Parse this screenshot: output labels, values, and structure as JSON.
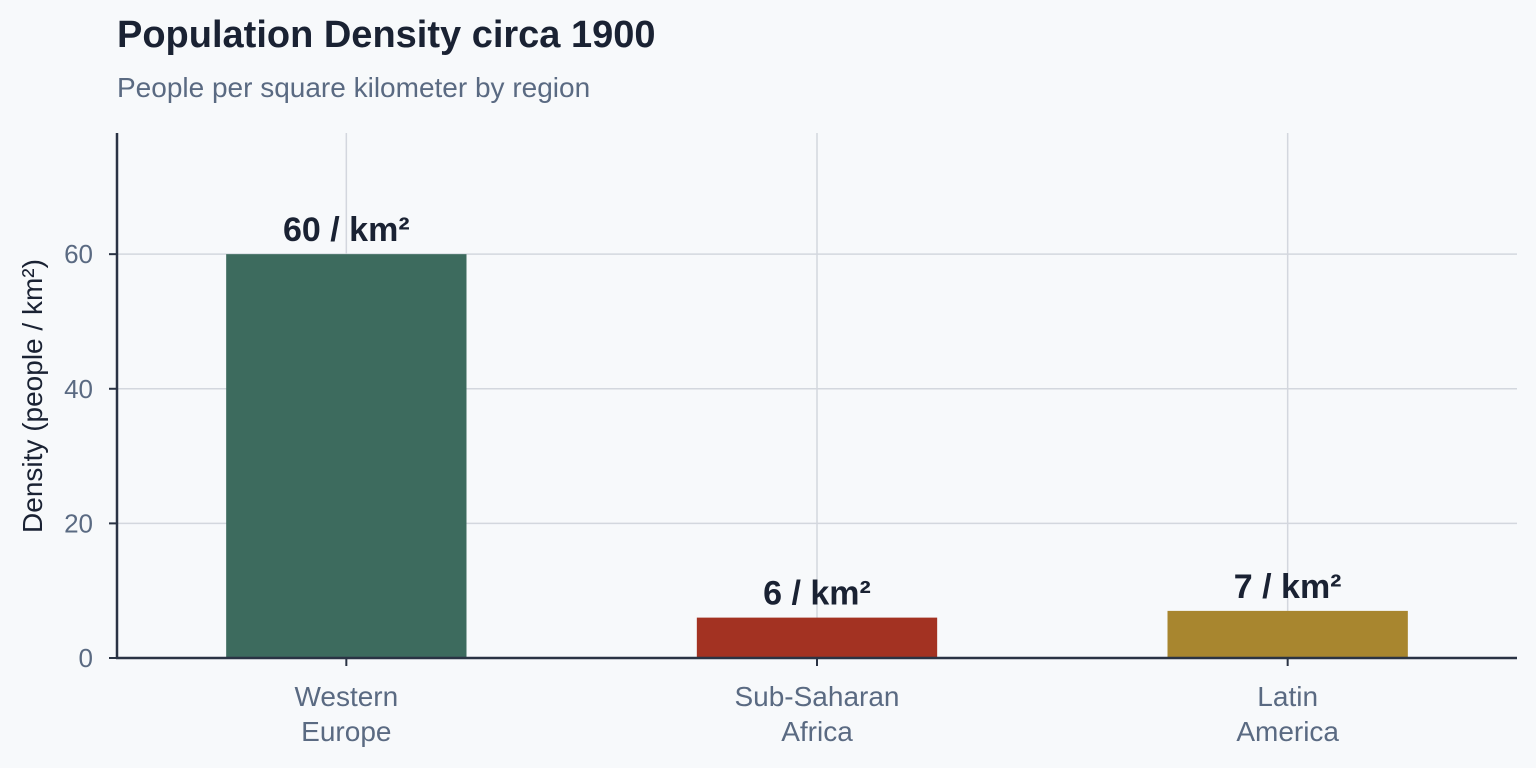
{
  "chart_data": {
    "type": "bar",
    "title": "Population Density circa 1900",
    "subtitle": "People per square kilometer by region",
    "xlabel": "",
    "ylabel": "Density (people / km²)",
    "categories": [
      [
        "Western",
        "Europe"
      ],
      [
        "Sub-Saharan",
        "Africa"
      ],
      [
        "Latin",
        "America"
      ]
    ],
    "values": [
      60,
      6,
      7
    ],
    "data_labels": [
      "60 / km²",
      "6 / km²",
      "7 / km²"
    ],
    "colors": [
      "#3d6b5e",
      "#a33222",
      "#a8862f"
    ],
    "yticks": [
      0,
      20,
      40,
      60
    ],
    "ylim": [
      0,
      78
    ],
    "grid": true,
    "legend": "none"
  }
}
